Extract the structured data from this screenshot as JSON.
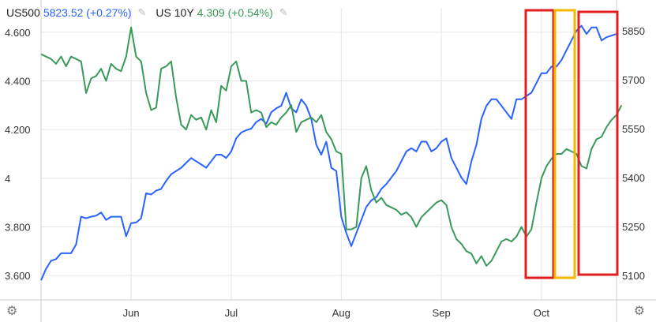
{
  "legend": {
    "s1_symbol": "US500",
    "s1_value": "5823.52 (+0.27%)",
    "s2_symbol": "US 10Y",
    "s2_value": "4.309 (+0.54%)",
    "edit_icon": "pencil-icon"
  },
  "icons": {
    "settings": "gear-icon"
  },
  "colors": {
    "us500": "#2962ff",
    "us10y": "#3a9a5a",
    "red_box": "#e02020",
    "yellow_box": "#f5b800",
    "grid": "#e6e6e6"
  },
  "chart_data": {
    "type": "line",
    "x_ticks": [
      {
        "label": "Jun",
        "i": 18
      },
      {
        "label": "Jul",
        "i": 38
      },
      {
        "label": "Aug",
        "i": 60
      },
      {
        "label": "Sep",
        "i": 80
      },
      {
        "label": "Oct",
        "i": 100
      }
    ],
    "y_left": {
      "lim": [
        3.5,
        4.7
      ],
      "ticks": [
        3.6,
        3.8,
        4.0,
        4.2,
        4.4,
        4.6
      ],
      "tick_labels": [
        "3.600",
        "3.800",
        "4",
        "4.200",
        "4.400",
        "4.600"
      ]
    },
    "y_right": {
      "lim": [
        5025,
        5920
      ],
      "ticks": [
        5100,
        5250,
        5400,
        5550,
        5700,
        5850
      ],
      "tick_labels": [
        "5100",
        "5250",
        "5400",
        "5550",
        "5700",
        "5850"
      ]
    },
    "series": [
      {
        "name": "US500",
        "axis": "right",
        "values": [
          5085,
          5120,
          5145,
          5150,
          5168,
          5168,
          5168,
          5195,
          5280,
          5275,
          5280,
          5283,
          5293,
          5270,
          5280,
          5280,
          5280,
          5220,
          5260,
          5262,
          5275,
          5352,
          5348,
          5360,
          5365,
          5390,
          5410,
          5420,
          5430,
          5445,
          5460,
          5450,
          5440,
          5430,
          5450,
          5470,
          5470,
          5460,
          5480,
          5520,
          5538,
          5545,
          5550,
          5570,
          5580,
          5565,
          5600,
          5612,
          5620,
          5660,
          5612,
          5600,
          5640,
          5620,
          5580,
          5500,
          5470,
          5510,
          5430,
          5420,
          5280,
          5230,
          5190,
          5230,
          5270,
          5310,
          5330,
          5340,
          5365,
          5380,
          5400,
          5420,
          5450,
          5480,
          5490,
          5480,
          5510,
          5510,
          5480,
          5490,
          5510,
          5520,
          5460,
          5430,
          5400,
          5380,
          5450,
          5500,
          5580,
          5620,
          5640,
          5640,
          5620,
          5600,
          5580,
          5640,
          5640,
          5650,
          5660,
          5690,
          5720,
          5720,
          5740,
          5740,
          5760,
          5790,
          5820,
          5850,
          5865,
          5840,
          5860,
          5860,
          5820,
          5830,
          5835,
          5840
        ]
      },
      {
        "name": "US 10Y",
        "axis": "left",
        "values": [
          4.51,
          4.5,
          4.49,
          4.47,
          4.5,
          4.46,
          4.5,
          4.49,
          4.48,
          4.35,
          4.41,
          4.42,
          4.45,
          4.4,
          4.47,
          4.45,
          4.44,
          4.5,
          4.62,
          4.5,
          4.48,
          4.35,
          4.28,
          4.29,
          4.45,
          4.46,
          4.48,
          4.33,
          4.22,
          4.2,
          4.26,
          4.24,
          4.25,
          4.2,
          4.28,
          4.23,
          4.38,
          4.36,
          4.46,
          4.48,
          4.4,
          4.4,
          4.27,
          4.28,
          4.27,
          4.21,
          4.23,
          4.22,
          4.25,
          4.27,
          4.3,
          4.19,
          4.23,
          4.24,
          4.25,
          4.23,
          4.26,
          4.19,
          4.16,
          4.11,
          4.1,
          3.79,
          3.79,
          3.8,
          4.0,
          4.05,
          3.95,
          3.9,
          3.92,
          3.89,
          3.88,
          3.87,
          3.85,
          3.86,
          3.84,
          3.8,
          3.84,
          3.86,
          3.88,
          3.9,
          3.91,
          3.89,
          3.8,
          3.75,
          3.73,
          3.7,
          3.69,
          3.65,
          3.68,
          3.64,
          3.66,
          3.7,
          3.74,
          3.75,
          3.74,
          3.76,
          3.8,
          3.76,
          3.79,
          3.9,
          4.0,
          4.05,
          4.08,
          4.1,
          4.1,
          4.12,
          4.11,
          4.1,
          4.05,
          4.04,
          4.12,
          4.16,
          4.17,
          4.21,
          4.24,
          4.26,
          4.3
        ]
      }
    ]
  }
}
